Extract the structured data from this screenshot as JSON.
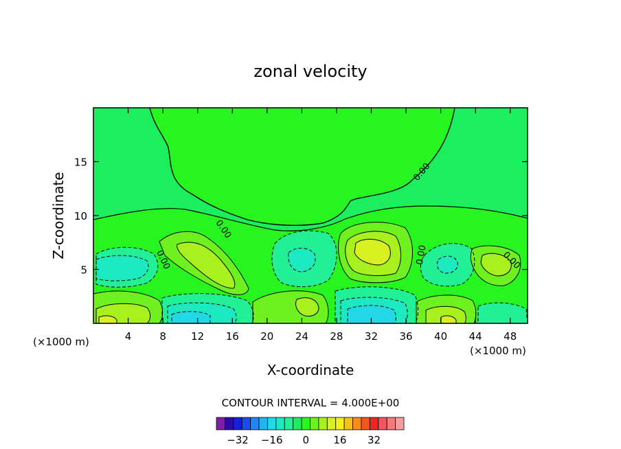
{
  "chart_data": {
    "type": "heatmap",
    "title": "zonal velocity",
    "xlabel": "X-coordinate",
    "ylabel": "Z-coordinate",
    "x_unit": "(×1000 m)",
    "xlim": [
      0,
      50
    ],
    "ylim": [
      0,
      20
    ],
    "x_ticks": [
      4,
      8,
      12,
      16,
      20,
      24,
      28,
      32,
      36,
      40,
      44,
      48
    ],
    "y_ticks": [
      5,
      10,
      15
    ],
    "contour_interval_text": "CONTOUR INTERVAL = 4.000E+00",
    "contour_labels": [
      "0.00",
      "0.00",
      "0.00",
      "0.00",
      "0.00"
    ],
    "colorbar": {
      "levels": [
        -36,
        -32,
        -28,
        -24,
        -20,
        -16,
        -12,
        -8,
        -4,
        0,
        4,
        8,
        12,
        16,
        20,
        24,
        28,
        32,
        36
      ],
      "tick_labels": [
        "-32",
        "-16",
        "0",
        "16",
        "32"
      ],
      "tick_values": [
        -32,
        -16,
        0,
        16,
        32
      ],
      "colors": [
        "#7e1fa6",
        "#2e0aa8",
        "#1620d8",
        "#1a4cf0",
        "#1e86f5",
        "#1fb4f2",
        "#22d8e8",
        "#1de9c0",
        "#22f097",
        "#1bef5d",
        "#26f51f",
        "#6ff01f",
        "#a9f01f",
        "#d8f01f",
        "#f5ee17",
        "#f5c21a",
        "#f58c1c",
        "#f2561c",
        "#f0261e",
        "#f25560",
        "#f57a7a",
        "#f59e9e"
      ]
    },
    "features": [
      {
        "x": 2.5,
        "z": 5.5,
        "value": -6,
        "note": "negative cell"
      },
      {
        "x": 15,
        "z": 7,
        "value": 9,
        "note": "positive elongated cell"
      },
      {
        "x": 24,
        "z": 6.5,
        "value": -5
      },
      {
        "x": 32.5,
        "z": 6.5,
        "value": 17,
        "note": "strong positive cell"
      },
      {
        "x": 41,
        "z": 6,
        "value": -5
      },
      {
        "x": 47,
        "z": 6,
        "value": 7
      },
      {
        "x": 3,
        "z": 0.5,
        "value": 14
      },
      {
        "x": 11.5,
        "z": 0.5,
        "value": -14
      },
      {
        "x": 24.5,
        "z": 1.5,
        "value": 10
      },
      {
        "x": 32,
        "z": 1,
        "value": -16
      },
      {
        "x": 40.5,
        "z": 0.5,
        "value": 14
      },
      {
        "x": 47,
        "z": 1,
        "value": -6
      }
    ]
  }
}
